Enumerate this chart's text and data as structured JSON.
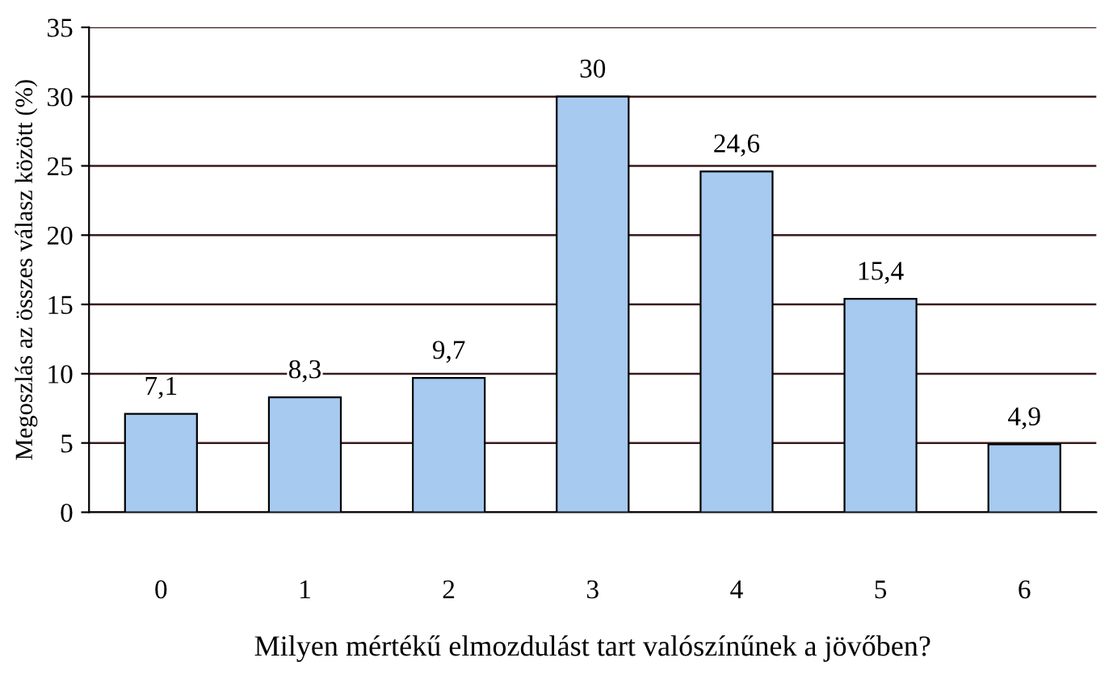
{
  "chart_data": {
    "type": "bar",
    "xlabel": "Milyen mértékű elmozdulást tart valószínűnek a jövőben?",
    "ylabel": "Megoszlás az összes válasz között (%)",
    "categories": [
      "0",
      "1",
      "2",
      "3",
      "4",
      "5",
      "6"
    ],
    "values": [
      7.1,
      8.3,
      9.7,
      30,
      24.6,
      15.4,
      4.9
    ],
    "value_labels": [
      "7,1",
      "8,3",
      "9,7",
      "30",
      "24,6",
      "15,4",
      "4,9"
    ],
    "color": "#a6caf0",
    "ylim": [
      0,
      35
    ],
    "yticks": [
      0,
      5,
      10,
      15,
      20,
      25,
      30,
      35
    ],
    "grid": "y"
  }
}
